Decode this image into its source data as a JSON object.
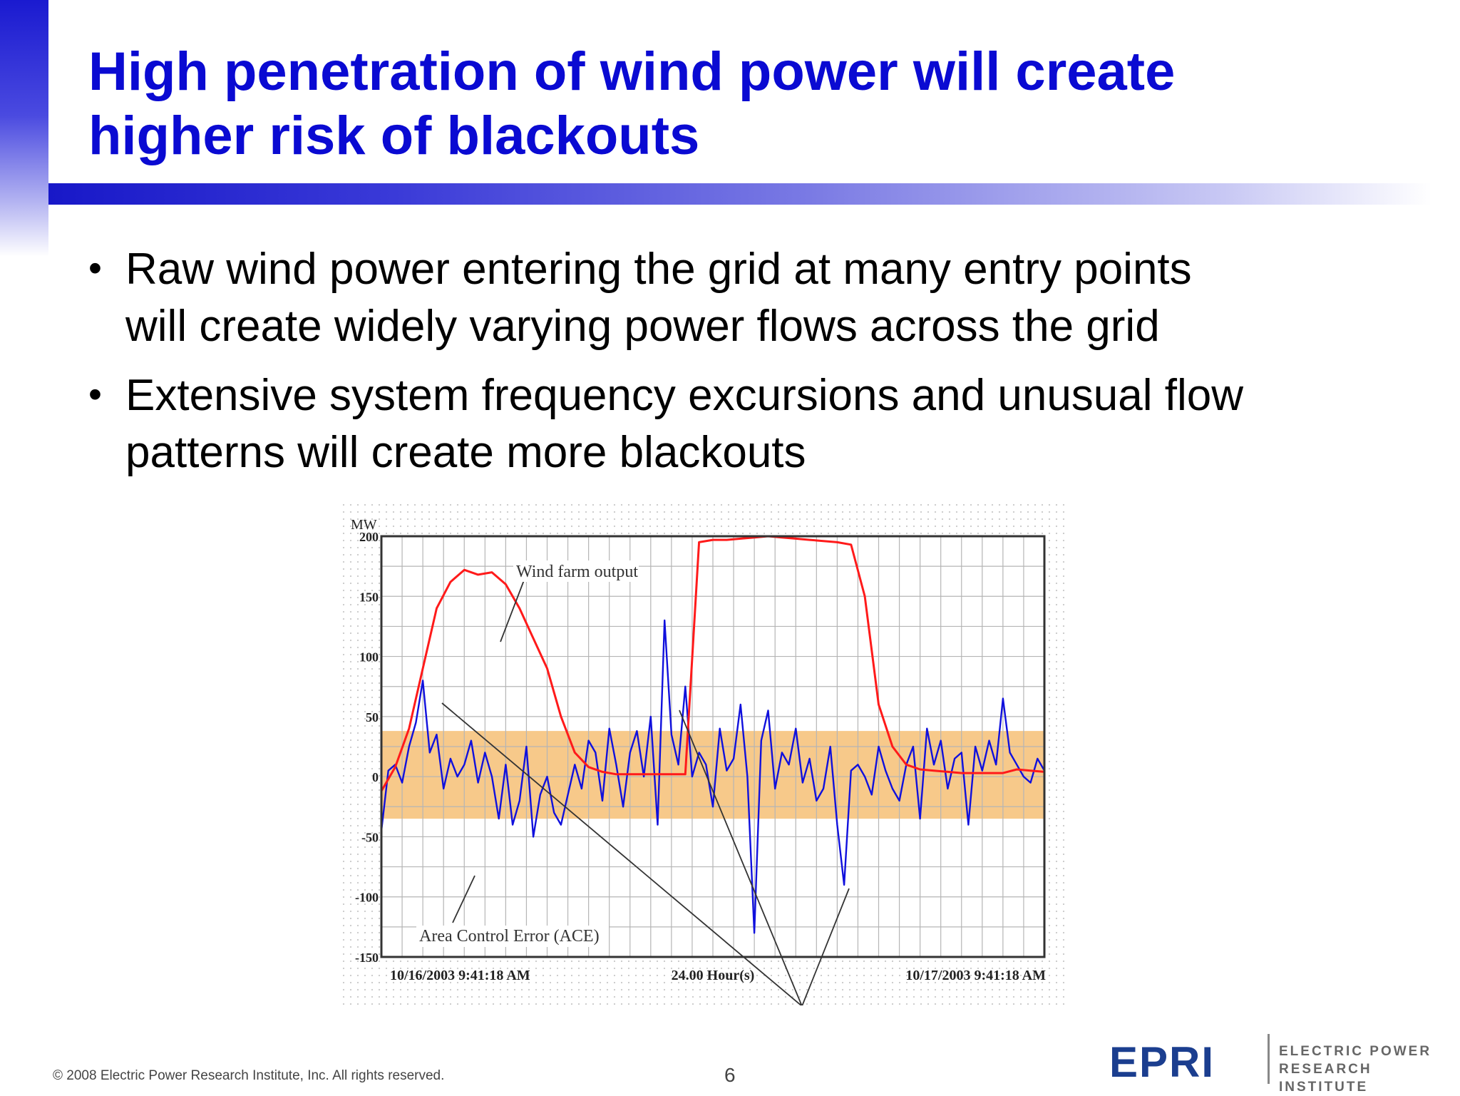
{
  "slide": {
    "title_line1": "High penetration of wind power will create",
    "title_line2": "higher risk of blackouts",
    "bullets": [
      {
        "line1": "Raw wind power entering the grid at many entry points",
        "line2": "will create widely varying power flows across the grid"
      },
      {
        "line1": "Extensive system frequency excursions and unusual flow",
        "line2": "patterns will create more blackouts"
      }
    ],
    "bullet_glyph": "•",
    "footer": "© 2008 Electric Power Research Institute, Inc. All rights reserved.",
    "page_number": "6",
    "logo": {
      "mark": "EPRI",
      "line1": "ELECTRIC POWER",
      "line2": "RESEARCH INSTITUTE"
    }
  },
  "colors": {
    "title": "#0a0ad2",
    "wind_series": "#ff1a1a",
    "ace_series": "#1010dd",
    "band": "#f7c98a",
    "logo": "#1b3e8f"
  },
  "chart_data": {
    "type": "line",
    "ylabel": "MW",
    "ylim": [
      -150,
      200
    ],
    "yticks": [
      "200",
      "150",
      "100",
      "50",
      "0",
      "-50",
      "-100",
      "-150"
    ],
    "xticks": [
      "10/16/2003 9:41:18 AM",
      "24.00 Hour(s)",
      "10/17/2003 9:41:18 AM"
    ],
    "x_range_hours": [
      0,
      24
    ],
    "band": [
      -35,
      38
    ],
    "annotations": [
      "Wind farm output",
      "Area Control Error (ACE)"
    ],
    "grid": true,
    "series": [
      {
        "name": "Wind farm output",
        "x": [
          0,
          0.5,
          1,
          1.5,
          2,
          2.5,
          3,
          3.5,
          4,
          4.5,
          5,
          5.5,
          6,
          6.5,
          7,
          7.5,
          8,
          8.5,
          9,
          9.5,
          10,
          10.5,
          11,
          11.5,
          12,
          12.5,
          13,
          13.5,
          14,
          14.5,
          15,
          15.5,
          16,
          16.5,
          17,
          17.5,
          18,
          18.5,
          19,
          19.5,
          20,
          20.5,
          21,
          21.5,
          22,
          22.5,
          23,
          23.5,
          24
        ],
        "values": [
          -12,
          8,
          40,
          90,
          140,
          162,
          172,
          168,
          170,
          160,
          140,
          115,
          90,
          50,
          20,
          8,
          4,
          2,
          2,
          2,
          2,
          2,
          2,
          195,
          197,
          197,
          198,
          199,
          200,
          199,
          198,
          197,
          196,
          195,
          193,
          150,
          60,
          25,
          10,
          6,
          5,
          4,
          3,
          3,
          3,
          3,
          6,
          5,
          4
        ]
      },
      {
        "name": "Area Control Error (ACE)",
        "x": [
          0,
          0.25,
          0.5,
          0.75,
          1,
          1.25,
          1.5,
          1.75,
          2,
          2.25,
          2.5,
          2.75,
          3,
          3.25,
          3.5,
          3.75,
          4,
          4.25,
          4.5,
          4.75,
          5,
          5.25,
          5.5,
          5.75,
          6,
          6.25,
          6.5,
          6.75,
          7,
          7.25,
          7.5,
          7.75,
          8,
          8.25,
          8.5,
          8.75,
          9,
          9.25,
          9.5,
          9.75,
          10,
          10.25,
          10.5,
          10.75,
          11,
          11.25,
          11.5,
          11.75,
          12,
          12.25,
          12.5,
          12.75,
          13,
          13.25,
          13.5,
          13.75,
          14,
          14.25,
          14.5,
          14.75,
          15,
          15.25,
          15.5,
          15.75,
          16,
          16.25,
          16.5,
          16.75,
          17,
          17.25,
          17.5,
          17.75,
          18,
          18.25,
          18.5,
          18.75,
          19,
          19.25,
          19.5,
          19.75,
          20,
          20.25,
          20.5,
          20.75,
          21,
          21.25,
          21.5,
          21.75,
          22,
          22.25,
          22.5,
          22.75,
          23,
          23.25,
          23.5,
          23.75,
          24
        ],
        "values": [
          -45,
          5,
          10,
          -5,
          25,
          45,
          80,
          20,
          35,
          -10,
          15,
          0,
          10,
          30,
          -5,
          20,
          0,
          -35,
          10,
          -40,
          -20,
          25,
          -50,
          -15,
          0,
          -30,
          -40,
          -15,
          10,
          -10,
          30,
          20,
          -20,
          40,
          10,
          -25,
          20,
          38,
          0,
          50,
          -40,
          130,
          35,
          10,
          75,
          0,
          20,
          10,
          -25,
          40,
          5,
          15,
          60,
          0,
          -130,
          30,
          55,
          -10,
          20,
          10,
          40,
          -5,
          15,
          -20,
          -10,
          25,
          -40,
          -90,
          5,
          10,
          0,
          -15,
          25,
          5,
          -10,
          -20,
          10,
          25,
          -35,
          40,
          10,
          30,
          -10,
          15,
          20,
          -40,
          25,
          5,
          30,
          10,
          65,
          20,
          10,
          0,
          -5,
          15,
          5
        ]
      }
    ]
  }
}
